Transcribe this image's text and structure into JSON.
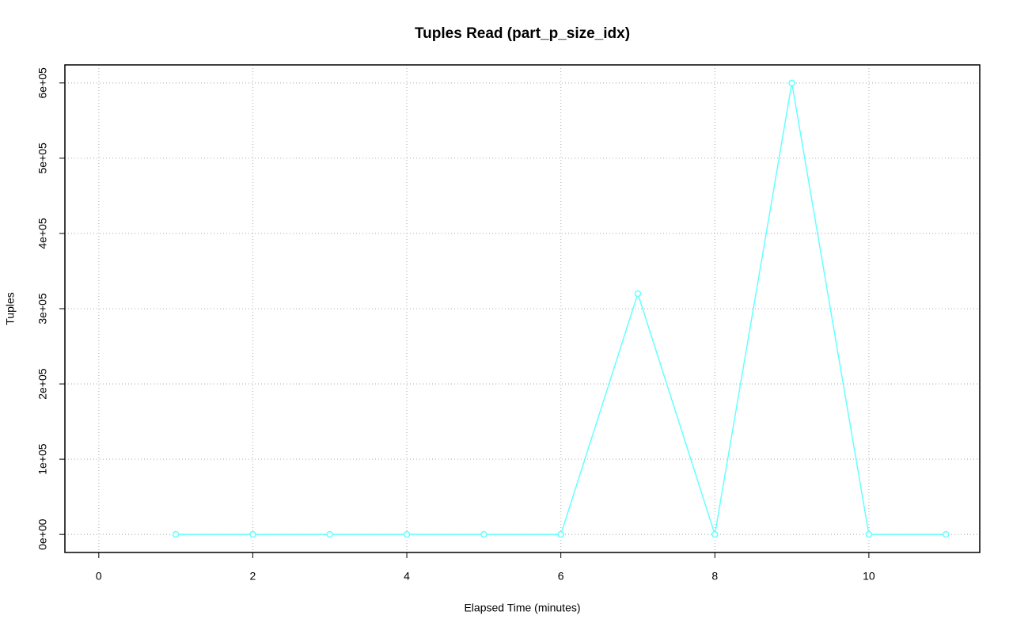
{
  "chart_data": {
    "type": "line",
    "title": "Tuples Read (part_p_size_idx)",
    "x_label": "Elapsed Time (minutes)",
    "y_label": "Tuples",
    "x": [
      1,
      2,
      3,
      4,
      5,
      6,
      7,
      8,
      9,
      10,
      11
    ],
    "series": [
      {
        "name": "part_p_size_idx",
        "color": "#66ffff",
        "values": [
          0,
          0,
          0,
          0,
          0,
          0,
          320000,
          0,
          600000,
          0,
          0
        ]
      }
    ],
    "xlim": [
      -0.44,
      11.44
    ],
    "xticks": [
      0,
      2,
      4,
      6,
      8,
      10
    ],
    "ylim": [
      -24000,
      624000
    ],
    "yticks": [
      {
        "value": 0,
        "label": "0e+00"
      },
      {
        "value": 100000,
        "label": "1e+05"
      },
      {
        "value": 200000,
        "label": "2e+05"
      },
      {
        "value": 300000,
        "label": "3e+05"
      },
      {
        "value": 400000,
        "label": "4e+05"
      },
      {
        "value": 500000,
        "label": "5e+05"
      },
      {
        "value": 600000,
        "label": "6e+05"
      }
    ],
    "grid": true
  }
}
